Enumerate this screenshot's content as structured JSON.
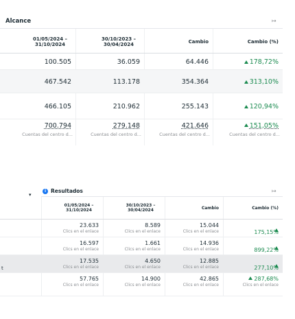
{
  "top_table": {
    "title": "Alcance",
    "columns": [
      "01/05/2024 – 31/10/2024",
      "30/10/2023 – 30/04/2024",
      "Cambio",
      "Cambio (%)"
    ],
    "rows": [
      [
        "100.505",
        "36.059",
        "64.446",
        "178,72%"
      ],
      [
        "467.542",
        "113.178",
        "354.364",
        "313,10%"
      ],
      [
        "466.105",
        "210.962",
        "255.143",
        "120,94%"
      ]
    ],
    "total": {
      "values": [
        "700.794",
        "279.148",
        "421.646",
        "151,05%"
      ],
      "notes": [
        "Cuentas del centro d...",
        "Cuentas del centro d...",
        "Cuentas del centro d...",
        "Cuentas del centro d..."
      ]
    }
  },
  "bottom_table": {
    "title": "Resultados",
    "columns": [
      "01/05/2024 – 31/10/2024",
      "30/10/2023 – 30/04/2024",
      "Cambio",
      "Cambio (%)"
    ],
    "rows": [
      {
        "cells": [
          {
            "value": "23.633",
            "note": "Clics en el enlace"
          },
          {
            "value": "8.589",
            "note": "Clics en el enlace"
          },
          {
            "value": "15.044",
            "note": "Clics en el enlace"
          },
          {
            "value": "175,15%"
          }
        ]
      },
      {
        "cells": [
          {
            "value": "16.597",
            "note": "Clics en el enlace"
          },
          {
            "value": "1.661",
            "note": "Clics en el enlace"
          },
          {
            "value": "14.936",
            "note": "Clics en el enlace"
          },
          {
            "value": "899,22%"
          }
        ]
      },
      {
        "label": "t",
        "cells": [
          {
            "value": "17.535",
            "note": "Clics en el enlace"
          },
          {
            "value": "4.650",
            "note": "Clics en el enlace"
          },
          {
            "value": "12.885",
            "note": "Clics en el enlace"
          },
          {
            "value": "277,10%"
          }
        ]
      },
      {
        "cells": [
          {
            "value": "57.765",
            "note": "Clics en el enlace"
          },
          {
            "value": "14.900",
            "note": "Clics en el enlace"
          },
          {
            "value": "42.865",
            "note": "Clics en el enlace"
          },
          {
            "value": "287,68%",
            "note": "Clics en el enlace"
          }
        ]
      }
    ]
  }
}
